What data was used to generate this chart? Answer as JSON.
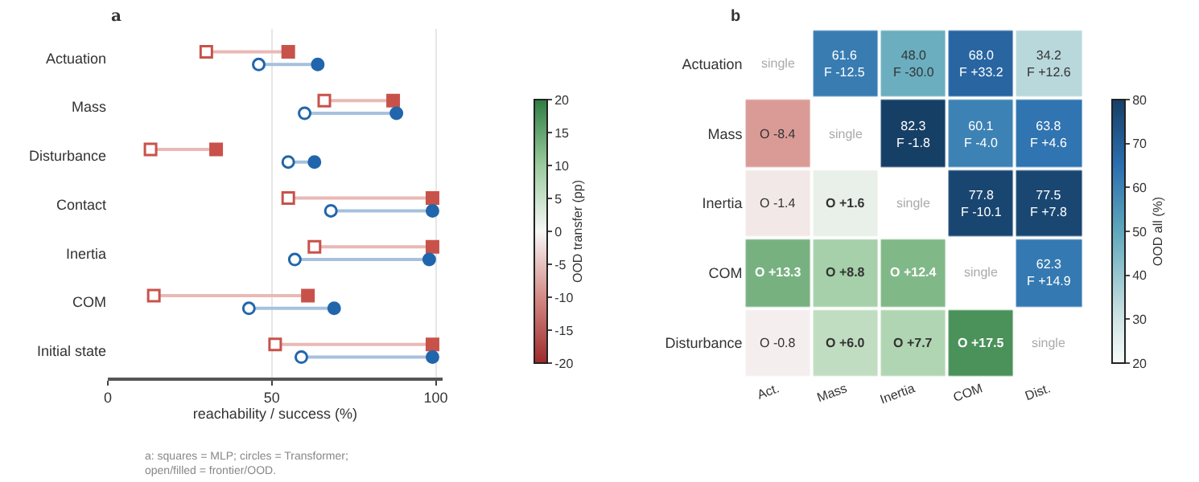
{
  "chart_data": [
    {
      "type": "scatter",
      "orientation": "horizontal",
      "title": "a",
      "xlabel": "reachability / success (%)",
      "categories": [
        "Actuation",
        "Mass",
        "Disturbance",
        "Contact",
        "Inertia",
        "COM",
        "Initial state"
      ],
      "series": [
        {
          "color": "#c8524a",
          "marker": "square",
          "values": [
            30,
            66,
            13,
            55,
            63,
            14,
            51
          ]
        },
        {
          "color": "#c8524a",
          "marker": "square",
          "values": [
            55,
            87,
            33,
            99,
            99,
            61,
            99
          ]
        },
        {
          "color": "#2166ac",
          "marker": "circle",
          "values": [
            46,
            60,
            55,
            68,
            57,
            43,
            59
          ]
        },
        {
          "color": "#2166ac",
          "marker": "circle",
          "values": [
            64,
            88,
            63,
            99,
            98,
            69,
            99
          ]
        }
      ],
      "xlim": [
        0,
        102
      ],
      "xticks": [
        0,
        50,
        100
      ],
      "grid": "x",
      "annotations": [
        "a: squares = MLP; circles = Transformer;\nopen/filled = frontier/OOD."
      ]
    },
    {
      "type": "heatmap",
      "title": "b",
      "clabel": "OOD transfer (pp)",
      "categories": [
        "Act.",
        "Mass",
        "Inertia",
        "COM",
        "Dist."
      ],
      "y_categories": [
        "Actuation",
        "Mass",
        "Inertia",
        "COM",
        "Disturbance"
      ],
      "cells": [
        [
          null,
          null,
          null,
          null,
          null
        ],
        [
          -8.4,
          null,
          null,
          null,
          null
        ],
        [
          -1.4,
          1.6,
          null,
          null,
          null
        ],
        [
          13.3,
          8.8,
          12.4,
          null,
          null
        ],
        [
          -0.8,
          6.0,
          7.7,
          17.5,
          null
        ]
      ],
      "cell_labels": [
        [
          "single",
          null,
          null,
          null,
          null
        ],
        [
          "O -8.4",
          "single",
          null,
          null,
          null
        ],
        [
          "O -1.4",
          "O +1.6",
          "single",
          null,
          null
        ],
        [
          "O +13.3",
          "O +8.8",
          "O +12.4",
          "single",
          null
        ],
        [
          "O -0.8",
          "O +6.0",
          "O +7.7",
          "O +17.5",
          "single"
        ]
      ],
      "clim": [
        -20,
        20
      ],
      "cticks": [
        -20,
        -15,
        -10,
        -5,
        0,
        5,
        10,
        15,
        20
      ]
    },
    {
      "type": "heatmap",
      "clabel": "OOD all (%)",
      "categories": [
        "Act.",
        "Mass",
        "Inertia",
        "COM",
        "Dist."
      ],
      "y_categories": [
        "Actuation",
        "Mass",
        "Inertia",
        "COM",
        "Disturbance"
      ],
      "cells": [
        [
          null,
          61.6,
          48.0,
          68.0,
          34.2
        ],
        [
          null,
          null,
          82.3,
          60.1,
          63.8
        ],
        [
          null,
          null,
          null,
          77.8,
          77.5
        ],
        [
          null,
          null,
          null,
          null,
          62.3
        ],
        [
          null,
          null,
          null,
          null,
          null
        ]
      ],
      "cell_labels": [
        [
          null,
          "61.6\nF -12.5",
          "48.0\nF -30.0",
          "68.0\nF +33.2",
          "34.2\nF +12.6"
        ],
        [
          null,
          null,
          "82.3\nF -1.8",
          "60.1\nF -4.0",
          "63.8\nF +4.6"
        ],
        [
          null,
          null,
          null,
          "77.8\nF -10.1",
          "77.5\nF +7.8"
        ],
        [
          null,
          null,
          null,
          null,
          "62.3\nF +14.9"
        ],
        [
          null,
          null,
          null,
          null,
          null
        ]
      ],
      "tick_labels": false,
      "clim": [
        20,
        80
      ],
      "cticks": [
        20,
        30,
        40,
        50,
        60,
        70,
        80
      ]
    }
  ]
}
